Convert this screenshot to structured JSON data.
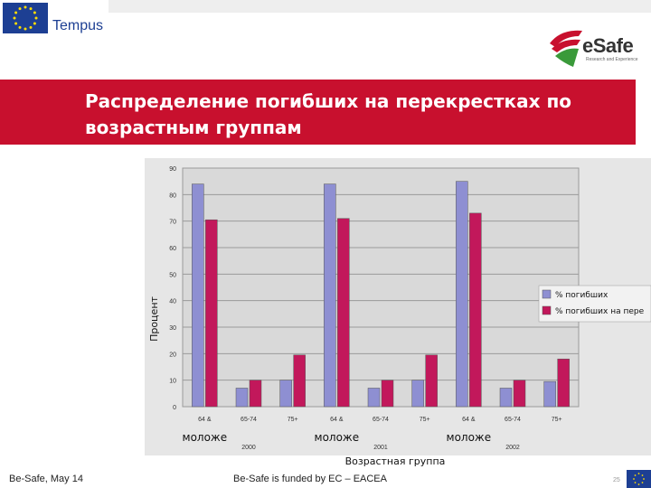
{
  "header": {
    "program_name": "Tempus",
    "brand_name": "eSafe",
    "brand_tagline": "Research and Experience"
  },
  "slide": {
    "title": "Распределение погибших на перекрестках по возрастным группам"
  },
  "footer": {
    "left_text": "Be-Safe, May 14",
    "middle_text": "Be-Safe is funded by EC – EACEA",
    "page_number": "25"
  },
  "colors": {
    "accent_red": "#c8102e",
    "series_1": "#8e8fd2",
    "series_2": "#c2185b",
    "eu_blue": "#1d3f93"
  },
  "chart_data": {
    "type": "bar",
    "categories": [
      "64 &",
      "65-74",
      "75+",
      "64 &",
      "65-74",
      "75+",
      "64 &",
      "65-74",
      "75+"
    ],
    "category_sublabels": [
      "моложе",
      "",
      "",
      "моложе",
      "",
      "",
      "моложе",
      "",
      ""
    ],
    "groups": [
      "2000",
      "2001",
      "2002"
    ],
    "series": [
      {
        "name": "% погибших",
        "values": [
          84,
          7,
          10,
          84,
          7,
          10,
          85,
          7,
          9.5
        ]
      },
      {
        "name": "% погибших на пере",
        "values": [
          70.5,
          10,
          19.5,
          71,
          10,
          19.5,
          73,
          10,
          18
        ]
      }
    ],
    "ylabel": "Процент",
    "xlabel": "Возрастная группа",
    "ylim": [
      0,
      90
    ],
    "yticks": [
      0,
      10,
      20,
      30,
      40,
      50,
      60,
      70,
      80,
      90
    ],
    "grid": true,
    "legend_position": "right"
  }
}
